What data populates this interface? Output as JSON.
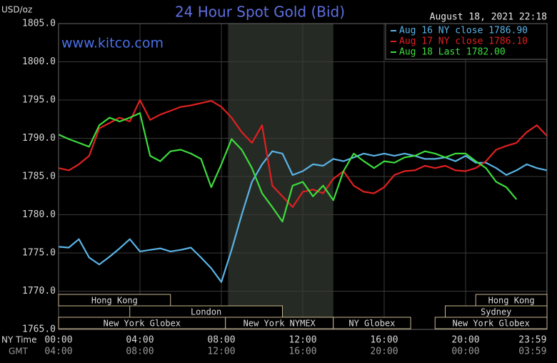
{
  "chart_data": {
    "type": "line",
    "title": "24 Hour Spot Gold (Bid)",
    "subtitle": "August 18, 2021 22:18",
    "watermark": "www.kitco.com",
    "y_label": "USD/oz",
    "x_label": "NY Time",
    "x2_label": "GMT",
    "xlim": [
      0,
      24
    ],
    "ylim": [
      1765,
      1805
    ],
    "grid": true,
    "legend": "top-right",
    "shaded_xrange": [
      8.33,
      13.5
    ],
    "yticks": [
      {
        "value": 1765,
        "label": "1765.0"
      },
      {
        "value": 1770,
        "label": "1770.0"
      },
      {
        "value": 1775,
        "label": "1775.0"
      },
      {
        "value": 1780,
        "label": "1780.0"
      },
      {
        "value": 1785,
        "label": "1785.0"
      },
      {
        "value": 1790,
        "label": "1790.0"
      },
      {
        "value": 1795,
        "label": "1795.0"
      },
      {
        "value": 1800,
        "label": "1800.0"
      },
      {
        "value": 1805,
        "label": "1805.0"
      }
    ],
    "xticks": [
      {
        "value": 0,
        "label": "00:00"
      },
      {
        "value": 4,
        "label": "04:00"
      },
      {
        "value": 8,
        "label": "08:00"
      },
      {
        "value": 12,
        "label": "12:00"
      },
      {
        "value": 16,
        "label": "16:00"
      },
      {
        "value": 20,
        "label": "20:00"
      },
      {
        "value": 23.98,
        "label": "23:59"
      }
    ],
    "x2ticks": [
      {
        "value": 0,
        "label": "04:00"
      },
      {
        "value": 4,
        "label": "08:00"
      },
      {
        "value": 8,
        "label": "12:00"
      },
      {
        "value": 12,
        "label": "16:00"
      },
      {
        "value": 16,
        "label": "20:00"
      },
      {
        "value": 20,
        "label": "00:00"
      },
      {
        "value": 23.98,
        "label": "03:59"
      }
    ],
    "sessions": [
      [
        {
          "label": "Hong Kong",
          "start": 0,
          "end": 5.5
        },
        {
          "label": "Hong Kong",
          "start": 20.5,
          "end": 24
        }
      ],
      [
        {
          "label": "London",
          "start": 3.5,
          "end": 11
        },
        {
          "label": "Sydney",
          "start": 19,
          "end": 24
        }
      ],
      [
        {
          "label": "New York Globex",
          "start": 0,
          "end": 8.2
        },
        {
          "label": "New York NYMEX",
          "start": 8.2,
          "end": 13.5
        },
        {
          "label": "NY Globex",
          "start": 13.5,
          "end": 17.3
        },
        {
          "label": "New York Globex",
          "start": 18.5,
          "end": 24
        }
      ]
    ],
    "x": [
      0,
      0.5,
      1,
      1.5,
      2,
      2.5,
      3,
      3.5,
      4,
      4.5,
      5,
      5.5,
      6,
      6.5,
      7,
      7.5,
      8,
      8.5,
      9,
      9.5,
      10,
      10.5,
      11,
      11.5,
      12,
      12.5,
      13,
      13.5,
      14,
      14.5,
      15,
      15.5,
      16,
      16.5,
      17,
      17.5,
      18,
      18.5,
      19,
      19.5,
      20,
      20.5,
      21,
      21.5,
      22,
      22.5,
      23,
      23.5,
      24
    ],
    "series": [
      {
        "name": "Aug 16 NY close 1786.90",
        "color": "#5ab4e6",
        "values": [
          1775.8,
          1775.7,
          1776.8,
          1774.4,
          1773.5,
          1774.5,
          1775.6,
          1776.8,
          1775.2,
          1775.4,
          1775.6,
          1775.2,
          1775.4,
          1775.7,
          1774.4,
          1773,
          1771.2,
          1775.4,
          1780,
          1784.3,
          1786.6,
          1788.3,
          1788,
          1785.2,
          1785.7,
          1786.6,
          1786.4,
          1787.3,
          1787,
          1787.5,
          1788,
          1787.7,
          1788,
          1787.7,
          1788,
          1787.7,
          1787.3,
          1787.3,
          1787.5,
          1787,
          1787.7,
          1786.8,
          1786.8,
          1786.1,
          1785.2,
          1785.8,
          1786.6,
          1786.1,
          1785.8
        ]
      },
      {
        "name": "Aug 17 NY close 1786.10",
        "color": "#e02020",
        "values": [
          1786.1,
          1785.8,
          1786.6,
          1787.7,
          1791.3,
          1792,
          1792.7,
          1792.2,
          1795,
          1792.4,
          1793.1,
          1793.6,
          1794.1,
          1794.3,
          1794.6,
          1794.9,
          1794.1,
          1792.7,
          1790.8,
          1789.4,
          1791.7,
          1783.8,
          1782.4,
          1781,
          1783,
          1783.3,
          1782.8,
          1784.7,
          1785.7,
          1783.8,
          1783,
          1782.8,
          1783.6,
          1785.2,
          1785.7,
          1785.8,
          1786.4,
          1786.1,
          1786.4,
          1785.8,
          1785.7,
          1786.1,
          1787,
          1788.5,
          1789,
          1789.4,
          1790.8,
          1791.7,
          1790.3
        ]
      },
      {
        "name": "Aug 18 Last 1782.00",
        "color": "#3ddc3d",
        "values": [
          1790.5,
          1789.9,
          1789.4,
          1788.9,
          1791.7,
          1792.7,
          1792.2,
          1792.7,
          1793.3,
          1787.7,
          1787,
          1788.3,
          1788.5,
          1788,
          1787.3,
          1783.6,
          1786.6,
          1789.9,
          1788.5,
          1786.1,
          1782.8,
          1781,
          1779.1,
          1783.8,
          1784.3,
          1782.4,
          1783.8,
          1781.9,
          1785.7,
          1788,
          1787,
          1786.1,
          1787,
          1786.8,
          1787.5,
          1787.7,
          1788.3,
          1788,
          1787.5,
          1788,
          1788,
          1787,
          1786.1,
          1784.3,
          1783.6,
          1782,
          null,
          null,
          null
        ]
      }
    ]
  }
}
